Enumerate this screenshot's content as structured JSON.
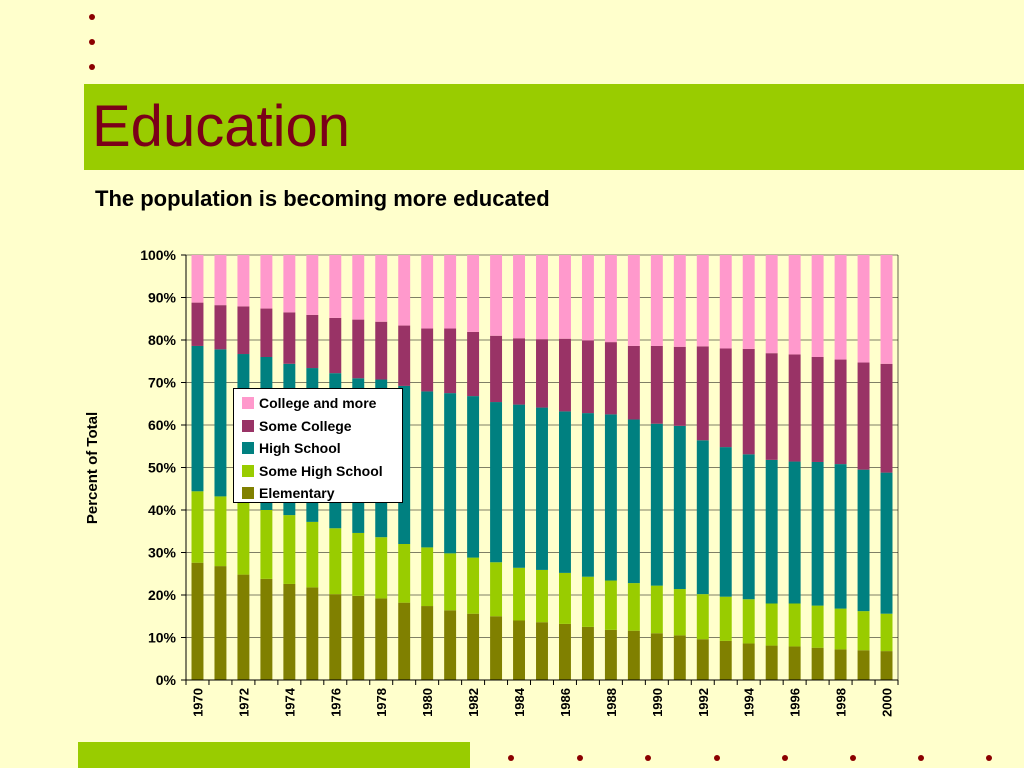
{
  "slide": {
    "title": "Education",
    "subtitle": "The population is becoming more educated",
    "colors": {
      "background": "#ffffcc",
      "band": "#99cc00",
      "title": "#7b0019",
      "bullet": "#8b0000"
    }
  },
  "chart_data": {
    "type": "bar",
    "stacked": true,
    "ylabel": "Percent of Total",
    "ylim": [
      0,
      100
    ],
    "yticks": [
      "0%",
      "10%",
      "20%",
      "30%",
      "40%",
      "50%",
      "60%",
      "70%",
      "80%",
      "90%",
      "100%"
    ],
    "categories": [
      "1970",
      "1971",
      "1972",
      "1973",
      "1974",
      "1975",
      "1976",
      "1977",
      "1978",
      "1979",
      "1980",
      "1981",
      "1982",
      "1983",
      "1984",
      "1985",
      "1986",
      "1987",
      "1988",
      "1989",
      "1990",
      "1991",
      "1992",
      "1993",
      "1994",
      "1995",
      "1996",
      "1997",
      "1998",
      "1999",
      "2000"
    ],
    "xtick_labels": [
      "1970",
      "",
      "1972",
      "",
      "1974",
      "",
      "1976",
      "",
      "1978",
      "",
      "1980",
      "",
      "1982",
      "",
      "1984",
      "",
      "1986",
      "",
      "1988",
      "",
      "1990",
      "",
      "1992",
      "",
      "1994",
      "",
      "1996",
      "",
      "1998",
      "",
      "2000"
    ],
    "legend_position": "center-left",
    "series": [
      {
        "name": "Elementary",
        "color": "#808000",
        "values": [
          27.6,
          26.8,
          24.8,
          23.8,
          22.6,
          21.8,
          20.2,
          19.8,
          19.2,
          18.2,
          17.4,
          16.4,
          15.6,
          15,
          14,
          13.6,
          13.2,
          12.5,
          11.8,
          11.6,
          11,
          10.5,
          9.6,
          9.2,
          8.6,
          8.1,
          7.9,
          7.6,
          7.2,
          7,
          6.8
        ]
      },
      {
        "name": "Some High School",
        "color": "#99cc00",
        "values": [
          16.8,
          16.4,
          17,
          16.2,
          16.2,
          15.4,
          15.5,
          14.8,
          14.4,
          13.8,
          13.8,
          13.4,
          13.2,
          12.7,
          12.4,
          12.3,
          12,
          11.8,
          11.6,
          11.2,
          11.2,
          10.9,
          10.6,
          10.4,
          10.4,
          9.9,
          10.1,
          9.9,
          9.6,
          9.2,
          8.8
        ]
      },
      {
        "name": "High School",
        "color": "#008080",
        "values": [
          34.2,
          34.6,
          34.9,
          36,
          35.6,
          36.2,
          36.5,
          36.4,
          37.1,
          37.2,
          36.7,
          37.7,
          38,
          37.7,
          38.4,
          38.2,
          38,
          38.5,
          39.1,
          38.5,
          38.1,
          38.4,
          36.2,
          35.2,
          34.1,
          33.8,
          33.4,
          33.8,
          34,
          33.3,
          33.2
        ]
      },
      {
        "name": "Some College",
        "color": "#993366",
        "values": [
          10.2,
          10.4,
          11.2,
          11.4,
          12.1,
          12.5,
          13,
          13.8,
          13.6,
          14.2,
          14.8,
          15.2,
          15.1,
          15.6,
          15.6,
          16.1,
          17.1,
          17.1,
          17,
          17.3,
          18.3,
          18.6,
          22.1,
          23.2,
          24.8,
          25.1,
          25.2,
          24.7,
          24.6,
          25.2,
          25.6
        ]
      },
      {
        "name": "College and more",
        "color": "#ff99cc",
        "values": [
          11.2,
          11.8,
          12.1,
          12.6,
          13.5,
          14.1,
          14.8,
          15.2,
          15.7,
          16.6,
          17.3,
          17.3,
          18.1,
          19,
          19.6,
          19.8,
          19.7,
          20.1,
          20.5,
          21.4,
          21.4,
          21.6,
          21.5,
          22,
          22.1,
          23.1,
          23.4,
          24,
          24.6,
          25.3,
          25.6
        ]
      }
    ]
  }
}
